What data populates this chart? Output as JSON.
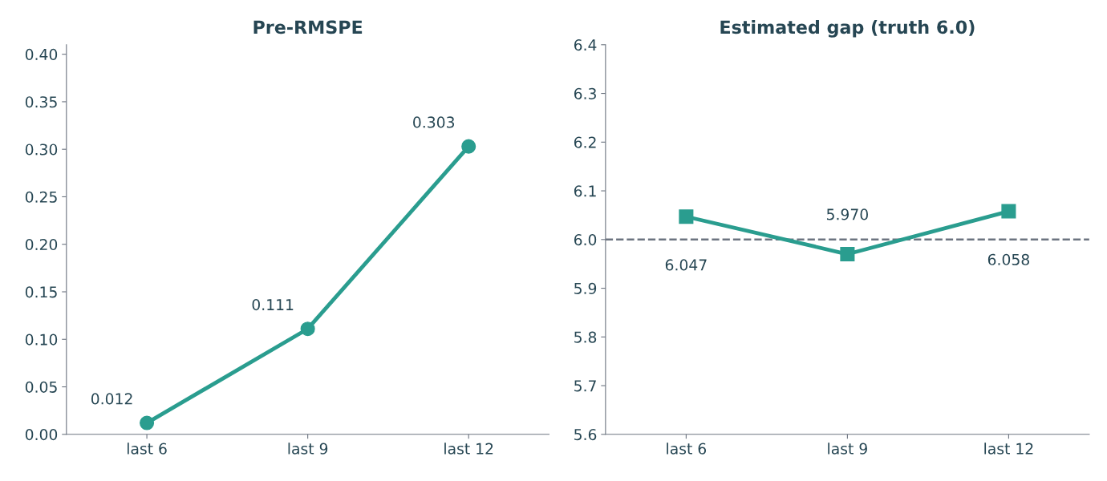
{
  "chart_data": [
    {
      "type": "line",
      "title": "Pre-RMSPE",
      "categories": [
        "last 6",
        "last 9",
        "last 12"
      ],
      "series": [
        {
          "color": "#2a9d8f",
          "values": [
            0.012,
            0.111,
            0.303
          ],
          "value_labels": [
            "0.012",
            "0.111",
            "0.303"
          ]
        }
      ],
      "ylim": [
        0,
        0.41
      ],
      "yticks": [
        {
          "value": 0,
          "label": "0.00"
        },
        {
          "value": 0.05,
          "label": "0.05"
        },
        {
          "value": 0.1,
          "label": "0.10"
        },
        {
          "value": 0.15,
          "label": "0.15"
        },
        {
          "value": 0.2,
          "label": "0.20"
        },
        {
          "value": 0.25,
          "label": "0.25"
        },
        {
          "value": 0.3,
          "label": "0.30"
        },
        {
          "value": 0.35,
          "label": "0.35"
        },
        {
          "value": 0.4,
          "label": "0.40"
        }
      ],
      "marker": "circle",
      "line_style": "solid",
      "grid": false,
      "legend": false
    },
    {
      "type": "line",
      "title": "Estimated gap (truth 6.0)",
      "categories": [
        "last 6",
        "last 9",
        "last 12"
      ],
      "series": [
        {
          "color": "#2a9d8f",
          "values": [
            6.047,
            5.97,
            6.058
          ],
          "value_labels": [
            "6.047",
            "5.970",
            "6.058"
          ]
        }
      ],
      "ylim": [
        5.6,
        6.4
      ],
      "yticks": [
        5.6,
        5.7,
        5.8,
        5.9,
        {
          "value": 6.0,
          "label": "6.0"
        },
        6.1,
        6.2,
        6.3,
        6.4
      ],
      "ref_lines": [
        {
          "axis": "y",
          "value": 6.0,
          "color": "#6c7480",
          "line_style": "dashed"
        }
      ],
      "marker": "square",
      "line_style": "solid",
      "grid": false,
      "legend": false
    }
  ]
}
